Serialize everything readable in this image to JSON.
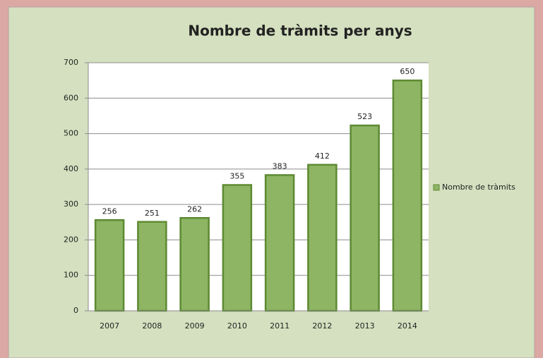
{
  "chart_data": {
    "type": "bar",
    "title": "Nombre de tràmits per anys",
    "categories": [
      "2007",
      "2008",
      "2009",
      "2010",
      "2011",
      "2012",
      "2013",
      "2014"
    ],
    "series": [
      {
        "name": "Nombre de tràmits",
        "color": "#8db563",
        "values": [
          256,
          251,
          262,
          355,
          383,
          412,
          523,
          650
        ]
      }
    ],
    "ylim": [
      0,
      700
    ],
    "yticks": [
      0,
      100,
      200,
      300,
      400,
      500,
      600,
      700
    ],
    "grid": true,
    "legend": "right"
  }
}
